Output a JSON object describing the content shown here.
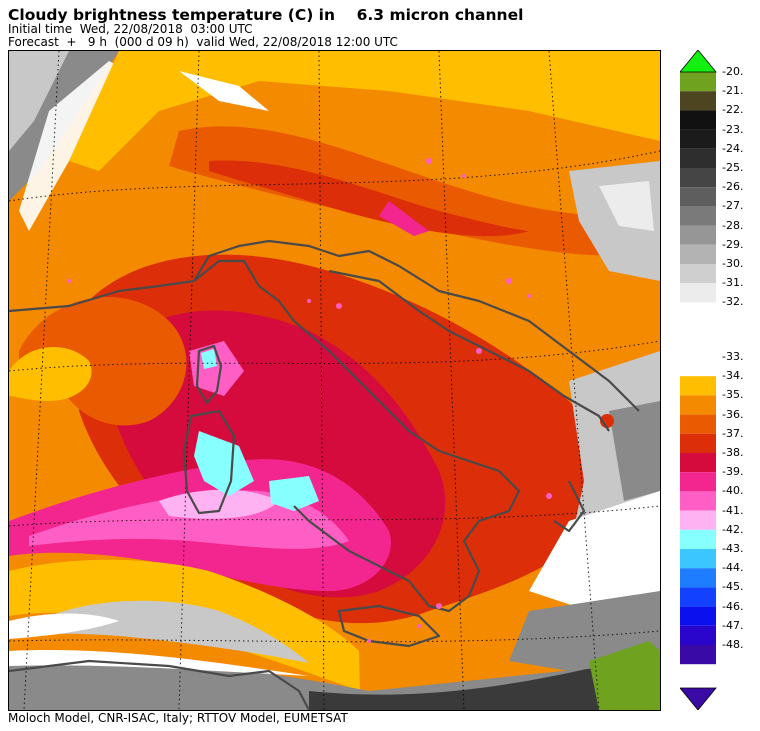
{
  "header": {
    "title": "Cloudy brightness temperature (C) in    6.3 micron channel",
    "initial_time": "Initial time  Wed, 22/08/2018  03:00 UTC",
    "forecast": "Forecast  +   9 h  (000 d 09 h)  valid Wed, 22/08/2018 12:00 UTC"
  },
  "footer": {
    "credit": "Moloch Model, CNR-ISAC, Italy; RTTOV Model, EUMETSAT"
  },
  "legend": {
    "unit": "C",
    "upper_block": [
      {
        "label": "-20.",
        "color": "#6fa21f"
      },
      {
        "label": "-21.",
        "color": "#4d4420"
      },
      {
        "label": "-22.",
        "color": "#111111"
      },
      {
        "label": "-23.",
        "color": "#1b1b1b"
      },
      {
        "label": "-24.",
        "color": "#2e2e2e"
      },
      {
        "label": "-25.",
        "color": "#454545"
      },
      {
        "label": "-26.",
        "color": "#5e5e5e"
      },
      {
        "label": "-27.",
        "color": "#7a7a7a"
      },
      {
        "label": "-28.",
        "color": "#969696"
      },
      {
        "label": "-29.",
        "color": "#b3b3b3"
      },
      {
        "label": "-30.",
        "color": "#cfcfcf"
      },
      {
        "label": "-31.",
        "color": "#ececec"
      },
      {
        "label": "-32.",
        "color": "#ffffff"
      }
    ],
    "lower_block": [
      {
        "label": "-33.",
        "color": "#ffffff"
      },
      {
        "label": "-34.",
        "color": "#ffbe00"
      },
      {
        "label": "-35.",
        "color": "#f48a00"
      },
      {
        "label": "-36.",
        "color": "#ea5a00"
      },
      {
        "label": "-37.",
        "color": "#dc2e08"
      },
      {
        "label": "-38.",
        "color": "#d40b3c"
      },
      {
        "label": "-39.",
        "color": "#f2268e"
      },
      {
        "label": "-40.",
        "color": "#ff5fc4"
      },
      {
        "label": "-41.",
        "color": "#ffb2f2"
      },
      {
        "label": "-42.",
        "color": "#88ffff"
      },
      {
        "label": "-43.",
        "color": "#3cc6ff"
      },
      {
        "label": "-44.",
        "color": "#1e7cff"
      },
      {
        "label": "-45.",
        "color": "#1242ff"
      },
      {
        "label": "-46.",
        "color": "#0a10ee"
      },
      {
        "label": "-47.",
        "color": "#2a06cc"
      },
      {
        "label": "-48.",
        "color": "#3a0aa6"
      }
    ],
    "top_arrow_color": "#12f010",
    "bottom_arrow_color": "#3a0aa6"
  },
  "map": {
    "region": "Central Mediterranean / Italy",
    "palette": {
      "gray_dark": "#3a3a3a",
      "gray_mid": "#8a8a8a",
      "gray_light": "#c8c8c8",
      "orange_light": "#ffbe00",
      "orange": "#f48a00",
      "orange_dark": "#ea5a00",
      "red": "#dc2e08",
      "crimson": "#d40b3c",
      "magenta": "#f2268e",
      "pink": "#ff5fc4",
      "pale_pink": "#ffb2f2",
      "cyan": "#88ffff",
      "green": "#6fa21f",
      "coast": "#4a4a4a"
    }
  }
}
